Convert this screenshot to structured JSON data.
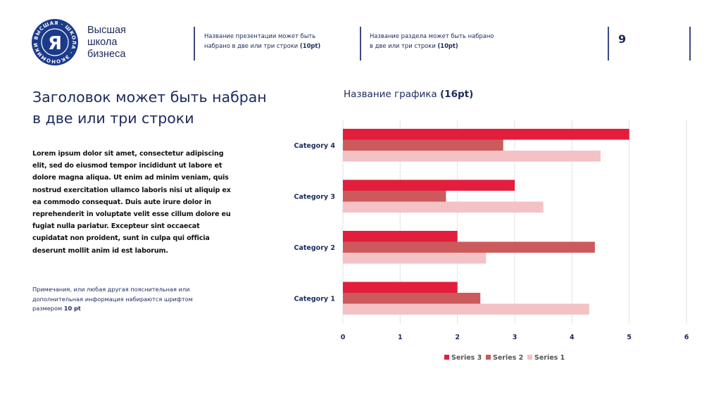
{
  "header": {
    "logo": {
      "ring_text": "ВЫСШАЯ · ШКОЛА · ЭКОНОМИКИ ·",
      "monogram": "Я",
      "lines": [
        "Высшая",
        "школа",
        "бизнеса"
      ],
      "color": "#1b3a8a"
    },
    "presentation_title": {
      "line1": "Название презентации может быть",
      "line2_text": "набрано в две или три строки ",
      "line2_bold": "(10pt)"
    },
    "section_title": {
      "line1": "Название раздела может быть набрано",
      "line2_text": "в две или три строки ",
      "line2_bold": "(10pt)"
    },
    "page_number": "9"
  },
  "main": {
    "title_lines": [
      "Заголовок может быть набран",
      "в две или три строки"
    ],
    "body_lines": [
      "Lorem ipsum dolor sit amet, consectetur adipiscing",
      "elit, sed do eiusmod tempor incididunt ut labore et",
      "dolore magna aliqua. Ut enim ad minim veniam, quis",
      "nostrud exercitation ullamco laboris nisi ut aliquip ex",
      "ea commodo consequat. Duis aute irure dolor in",
      "reprehenderit in voluptate velit esse cillum dolore eu",
      "fugiat nulla pariatur. Excepteur sint occaecat",
      "cupidatat non proident, sunt in culpa qui officia",
      "deserunt mollit anim id est laborum."
    ],
    "notes": {
      "line1": "Примечания, или любая другая пояснительная или",
      "line2": "дополнительная информация набираются шрифтом",
      "line3_text": "размером ",
      "line3_bold": "10 pt"
    }
  },
  "chart_data": {
    "type": "bar",
    "orientation": "horizontal",
    "title_text": "Название графика ",
    "title_bold": "(16pt)",
    "categories": [
      "Category 1",
      "Category 2",
      "Category 3",
      "Category 4"
    ],
    "series": [
      {
        "name": "Series 1",
        "values": [
          4.3,
          2.5,
          3.5,
          4.5
        ],
        "color": "#f4c2c4"
      },
      {
        "name": "Series 2",
        "values": [
          2.4,
          4.4,
          1.8,
          2.8
        ],
        "color": "#cc5a5c"
      },
      {
        "name": "Series 3",
        "values": [
          2,
          2,
          3,
          5
        ],
        "color": "#e31e3c"
      }
    ],
    "xlim": [
      0,
      6
    ],
    "xticks": [
      "0",
      "1",
      "2",
      "3",
      "4",
      "5",
      "6"
    ],
    "grid": true,
    "legend_order": [
      "Series 3",
      "Series 2",
      "Series 1"
    ],
    "legend_position": "bottom"
  }
}
